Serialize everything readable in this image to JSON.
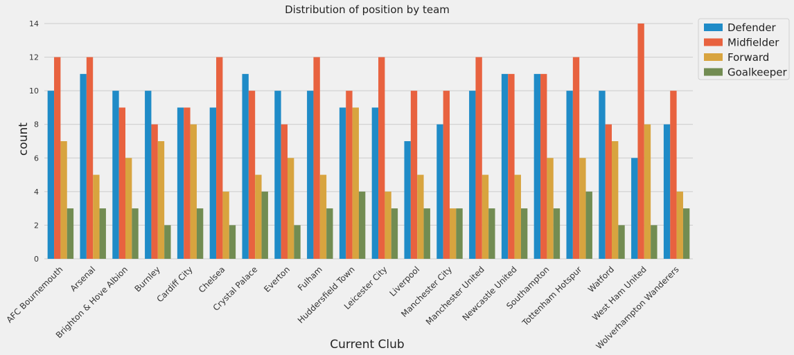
{
  "chart_data": {
    "type": "bar",
    "title": "Distribution of position by team",
    "xlabel": "Current Club",
    "ylabel": "count",
    "ylim": [
      0,
      14.7
    ],
    "yticks": [
      0,
      2,
      4,
      6,
      8,
      10,
      12,
      14
    ],
    "grid": true,
    "legend_position": "top-right outside",
    "categories": [
      "AFC Bournemouth",
      "Arsenal",
      "Brighton & Hove Albion",
      "Burnley",
      "Cardiff City",
      "Chelsea",
      "Crystal Palace",
      "Everton",
      "Fulham",
      "Huddersfield Town",
      "Leicester City",
      "Liverpool",
      "Manchester City",
      "Manchester United",
      "Newcastle United",
      "Southampton",
      "Tottenham Hotspur",
      "Watford",
      "West Ham United",
      "Wolverhampton Wanderers"
    ],
    "series": [
      {
        "name": "Defender",
        "color": "#1f8bc7",
        "values": [
          10,
          11,
          10,
          10,
          9,
          9,
          11,
          10,
          10,
          9,
          9,
          7,
          8,
          10,
          11,
          11,
          10,
          10,
          6,
          8
        ]
      },
      {
        "name": "Midfielder",
        "color": "#e8623f",
        "values": [
          12,
          12,
          9,
          8,
          9,
          12,
          10,
          8,
          12,
          10,
          12,
          10,
          10,
          12,
          11,
          11,
          12,
          8,
          14,
          10
        ]
      },
      {
        "name": "Forward",
        "color": "#d8a43f",
        "values": [
          7,
          5,
          6,
          7,
          8,
          4,
          5,
          6,
          5,
          9,
          4,
          5,
          3,
          5,
          5,
          6,
          6,
          7,
          8,
          4
        ]
      },
      {
        "name": "Goalkeeper",
        "color": "#728c52",
        "values": [
          3,
          3,
          3,
          2,
          3,
          2,
          4,
          2,
          3,
          4,
          3,
          3,
          3,
          3,
          3,
          3,
          4,
          2,
          2,
          3
        ]
      }
    ]
  }
}
